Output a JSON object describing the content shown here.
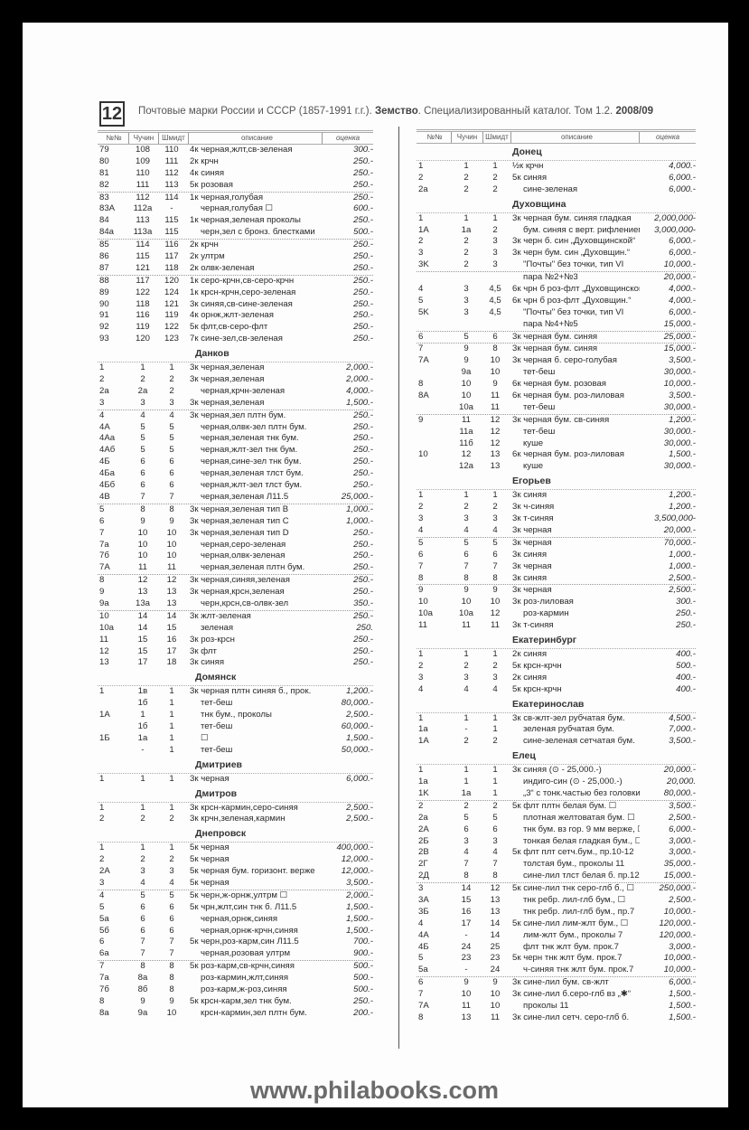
{
  "header": {
    "page_number": "12",
    "title_parts": [
      "Почтовые марки России и СССР (1857-1991 г.г.). ",
      "Земство",
      ". Специализированный каталог. Том 1.2. ",
      "2008/09"
    ]
  },
  "columns": [
    "№№",
    "Чучин",
    "Шмидт",
    "описание",
    "оценка"
  ],
  "left": [
    {
      "title": "",
      "groups": [
        [
          [
            "79",
            "108",
            "110",
            "4к черная,жлт,св-зеленая",
            "300.-"
          ],
          [
            "80",
            "109",
            "111",
            "2к крчн",
            "250.-"
          ],
          [
            "81",
            "110",
            "112",
            "4к синяя",
            "250.-"
          ],
          [
            "82",
            "111",
            "113",
            "5к розовая",
            "250.-"
          ]
        ],
        [
          [
            "83",
            "112",
            "114",
            "1к черная,голубая",
            "250.-"
          ],
          [
            "83A",
            "112a",
            "-",
            "черная,голубая ☐",
            "600.-"
          ],
          [
            "84",
            "113",
            "115",
            "1к черная,зеленая проколы",
            "250.-"
          ],
          [
            "84a",
            "113a",
            "115",
            "черн,зел с бронз. блестками",
            "500.-"
          ]
        ],
        [
          [
            "85",
            "114",
            "116",
            "2к крчн",
            "250.-"
          ],
          [
            "86",
            "115",
            "117",
            "2к ултрм",
            "250.-"
          ],
          [
            "87",
            "121",
            "118",
            "2к олвк-зеленая",
            "250.-"
          ]
        ],
        [
          [
            "88",
            "117",
            "120",
            "1к серо-крчн,св-серо-крчн",
            "250.-"
          ],
          [
            "89",
            "122",
            "124",
            "1к крсн-крчн,серо-зеленая",
            "250.-"
          ],
          [
            "90",
            "118",
            "121",
            "3к синяя,св-сине-зеленая",
            "250.-"
          ],
          [
            "91",
            "116",
            "119",
            "4к орнж,жлт-зеленая",
            "250.-"
          ],
          [
            "92",
            "119",
            "122",
            "5к флт,св-серо-флт",
            "250.-"
          ],
          [
            "93",
            "120",
            "123",
            "7к сине-зел,св-зеленая",
            "250.-"
          ]
        ]
      ]
    },
    {
      "title": "Данков",
      "groups": [
        [
          [
            "1",
            "1",
            "1",
            "3к черная,зеленая",
            "2,000.-"
          ],
          [
            "2",
            "2",
            "2",
            "3к черная,зеленая",
            "2,000.-"
          ],
          [
            "2a",
            "2a",
            "2",
            "черная,крчн-зеленая",
            "4,000.-"
          ],
          [
            "3",
            "3",
            "3",
            "3к черная,зеленая",
            "1,500.-"
          ]
        ],
        [
          [
            "4",
            "4",
            "4",
            "3к черная,зел плтн бум.",
            "250.-"
          ],
          [
            "4A",
            "5",
            "5",
            "черная,олвк-зел плтн бум.",
            "250.-"
          ],
          [
            "4Aa",
            "5",
            "5",
            "черная,зеленая тнк бум.",
            "250.-"
          ],
          [
            "4Aб",
            "5",
            "5",
            "черная,жлт-зел тнк бум.",
            "250.-"
          ],
          [
            "4Б",
            "6",
            "6",
            "черная,сине-зел тнк бум.",
            "250.-"
          ],
          [
            "4Бa",
            "6",
            "6",
            "черная,зеленая тлст бум.",
            "250.-"
          ],
          [
            "4Бб",
            "6",
            "6",
            "черная,жлт-зел тлст бум.",
            "250.-"
          ],
          [
            "4В",
            "7",
            "7",
            "черная,зеленая Л11.5",
            "25,000.-"
          ]
        ],
        [
          [
            "5",
            "8",
            "8",
            "3к черная,зеленая тип B",
            "1,000.-"
          ],
          [
            "6",
            "9",
            "9",
            "3к черная,зеленая тип C",
            "1,000.-"
          ],
          [
            "7",
            "10",
            "10",
            "3к черная,зеленая тип D",
            "250.-"
          ],
          [
            "7a",
            "10",
            "10",
            "черная,серо-зеленая",
            "250.-"
          ],
          [
            "7б",
            "10",
            "10",
            "черная,олвк-зеленая",
            "250.-"
          ],
          [
            "7A",
            "11",
            "11",
            "черная,зеленая плтн бум.",
            "250.-"
          ]
        ],
        [
          [
            "8",
            "12",
            "12",
            "3к черная,синяя,зеленая",
            "250.-"
          ],
          [
            "9",
            "13",
            "13",
            "3к черная,крсн,зеленая",
            "250.-"
          ],
          [
            "9a",
            "13a",
            "13",
            "черн,крсн,св-олвк-зел",
            "350.-"
          ]
        ],
        [
          [
            "10",
            "14",
            "14",
            "3к жлт-зеленая",
            "250.-"
          ],
          [
            "10a",
            "14",
            "15",
            "зеленая",
            "250."
          ],
          [
            "11",
            "15",
            "16",
            "3к роз-крсн",
            "250.-"
          ],
          [
            "12",
            "15",
            "17",
            "3к флт",
            "250.-"
          ],
          [
            "13",
            "17",
            "18",
            "3к синяя",
            "250.-"
          ]
        ]
      ]
    },
    {
      "title": "Домянск",
      "groups": [
        [
          [
            "1",
            "1в",
            "1",
            "3к черная плтн синяя б., прок.",
            "1,200.-"
          ],
          [
            "",
            "1б",
            "1",
            "тет-беш",
            "80,000.-"
          ],
          [
            "1A",
            "1",
            "1",
            "тнк бум., проколы",
            "2,500.-"
          ],
          [
            "",
            "1б",
            "1",
            "тет-беш",
            "60,000.-"
          ],
          [
            "1Б",
            "1a",
            "1",
            "☐",
            "1,500.-"
          ],
          [
            "",
            "-",
            "1",
            "тет-беш",
            "50,000.-"
          ]
        ]
      ]
    },
    {
      "title": "Дмитриев",
      "groups": [
        [
          [
            "1",
            "1",
            "1",
            "3к черная",
            "6,000.-"
          ]
        ]
      ]
    },
    {
      "title": "Дмитров",
      "groups": [
        [
          [
            "1",
            "1",
            "1",
            "3к крсн-кармин,серо-синяя",
            "2,500.-"
          ],
          [
            "2",
            "2",
            "2",
            "3к крчн,зеленая,кармин",
            "2,500.-"
          ]
        ]
      ]
    },
    {
      "title": "Днепровск",
      "groups": [
        [
          [
            "1",
            "1",
            "1",
            "5к черная",
            "400,000.-"
          ],
          [
            "2",
            "2",
            "2",
            "5к черная",
            "12,000.-"
          ],
          [
            "2A",
            "3",
            "3",
            "5к черная бум. горизонт. верже",
            "12,000.-"
          ],
          [
            "3",
            "4",
            "4",
            "5к черная",
            "3,500.-"
          ]
        ],
        [
          [
            "4",
            "5",
            "5",
            "5к черн,ж-орнж,ултрм ☐",
            "2,000.-"
          ],
          [
            "5",
            "6",
            "6",
            "5к чрн,жлт,син тнк б. Л11.5",
            "1,500.-"
          ],
          [
            "5a",
            "6",
            "6",
            "черная,орнж,синяя",
            "1,500.-"
          ],
          [
            "5б",
            "6",
            "6",
            "черная,орнж-крчн,синяя",
            "1,500.-"
          ],
          [
            "6",
            "7",
            "7",
            "5к черн,роз-карм,син Л11.5",
            "700.-"
          ],
          [
            "6a",
            "7",
            "7",
            "черная,розовая ултрм",
            "900.-"
          ]
        ],
        [
          [
            "7",
            "8",
            "8",
            "5к роз-карм,св-крчн,синяя",
            "500.-"
          ],
          [
            "7a",
            "8a",
            "8",
            "роз-кармин,жлт,синяя",
            "500.-"
          ],
          [
            "7б",
            "8б",
            "8",
            "роз-карм,ж-роз,синяя",
            "500.-"
          ],
          [
            "8",
            "9",
            "9",
            "5к крсн-карм,зел тнк бум.",
            "250.-"
          ],
          [
            "8a",
            "9a",
            "10",
            "крсн-кармин,зел плтн бум.",
            "200.-"
          ]
        ]
      ]
    }
  ],
  "right": [
    {
      "title": "Донец",
      "groups": [
        [
          [
            "1",
            "1",
            "1",
            "½к крчн",
            "4,000.-"
          ],
          [
            "2",
            "2",
            "2",
            "5к синяя",
            "6,000.-"
          ],
          [
            "2a",
            "2",
            "2",
            "сине-зеленая",
            "6,000.-"
          ]
        ]
      ]
    },
    {
      "title": "Духовщина",
      "groups": [
        [
          [
            "1",
            "1",
            "1",
            "3к черная бум. синяя гладкая",
            "2,000,000-"
          ],
          [
            "1A",
            "1a",
            "2",
            "бум. синяя с верт. рифлением",
            "3,000,000-"
          ],
          [
            "2",
            "2",
            "3",
            "3к черн б. син „Духовщинской“",
            "6,000.-"
          ],
          [
            "3",
            "2",
            "3",
            "3к черн бум. син „Духовщин.“",
            "6,000.-"
          ],
          [
            "3K",
            "2",
            "3",
            "\"Почты\" без точки, тип VI",
            "10,000.-"
          ]
        ],
        [
          [
            "",
            "",
            "",
            "пара №2+№3",
            "20,000.-"
          ],
          [
            "4",
            "3",
            "4,5",
            "6к чрн б роз-флт „Духовщинской“",
            "4,000.-"
          ],
          [
            "5",
            "3",
            "4,5",
            "6к чрн б роз-флт „Духовщин.“",
            "4,000.-"
          ],
          [
            "5K",
            "3",
            "4,5",
            "\"Почты\" без точки, тип VI",
            "6,000.-"
          ],
          [
            "",
            "",
            "",
            "пара №4+№5",
            "15,000.-"
          ]
        ],
        [
          [
            "6",
            "5",
            "6",
            "3к черная бум. синяя",
            "25,000.-"
          ]
        ],
        [
          [
            "7",
            "9",
            "8",
            "3к черная бум. синяя",
            "15,000.-"
          ],
          [
            "7A",
            "9",
            "10",
            "3к черная б. серо-голубая",
            "3,500.-"
          ],
          [
            "",
            "9a",
            "10",
            "тет-беш",
            "30,000.-"
          ],
          [
            "8",
            "10",
            "9",
            "6к черная бум. розовая",
            "10,000.-"
          ],
          [
            "8A",
            "10",
            "11",
            "6к черная бум. роз-лиловая",
            "3,500.-"
          ],
          [
            "",
            "10a",
            "11",
            "тет-беш",
            "30,000.-"
          ]
        ],
        [
          [
            "9",
            "11",
            "12",
            "3к черная бум. св-синяя",
            "1,200.-"
          ],
          [
            "",
            "11a",
            "12",
            "тет-беш",
            "30,000.-"
          ],
          [
            "",
            "11б",
            "12",
            "куше",
            "30,000.-"
          ],
          [
            "10",
            "12",
            "13",
            "6к черная бум. роз-лиловая",
            "1,500.-"
          ],
          [
            "",
            "12a",
            "13",
            "куше",
            "30,000.-"
          ]
        ]
      ]
    },
    {
      "title": "Егорьев",
      "groups": [
        [
          [
            "1",
            "1",
            "1",
            "3к синяя",
            "1,200.-"
          ],
          [
            "2",
            "2",
            "2",
            "3к ч-синяя",
            "1,200.-"
          ],
          [
            "3",
            "3",
            "3",
            "3к т-синяя",
            "3,500,000-"
          ],
          [
            "4",
            "4",
            "4",
            "3к черная",
            "20,000.-"
          ]
        ],
        [
          [
            "5",
            "5",
            "5",
            "3к черная",
            "70,000.-"
          ],
          [
            "6",
            "6",
            "6",
            "3к синяя",
            "1,000.-"
          ],
          [
            "7",
            "7",
            "7",
            "3к черная",
            "1,000.-"
          ],
          [
            "8",
            "8",
            "8",
            "3к синяя",
            "2,500.-"
          ]
        ],
        [
          [
            "9",
            "9",
            "9",
            "3к черная",
            "2,500.-"
          ],
          [
            "10",
            "10",
            "10",
            "3к роз-лиловая",
            "300.-"
          ],
          [
            "10a",
            "10a",
            "12",
            "роз-кармин",
            "250.-"
          ],
          [
            "11",
            "11",
            "11",
            "3к т-синяя",
            "250.-"
          ]
        ]
      ]
    },
    {
      "title": "Екатеринбург",
      "groups": [
        [
          [
            "1",
            "1",
            "1",
            "2к синяя",
            "400.-"
          ],
          [
            "2",
            "2",
            "2",
            "5к крсн-крчн",
            "500.-"
          ],
          [
            "3",
            "3",
            "3",
            "2к синяя",
            "400.-"
          ],
          [
            "4",
            "4",
            "4",
            "5к крсн-крчн",
            "400.-"
          ]
        ]
      ]
    },
    {
      "title": "Екатеринослав",
      "groups": [
        [
          [
            "1",
            "1",
            "1",
            "3к св-жлт-зел рубчатая бум.",
            "4,500.-"
          ],
          [
            "1a",
            "-",
            "1",
            "зеленая рубчатая бум.",
            "7,000.-"
          ],
          [
            "1A",
            "2",
            "2",
            "сине-зеленая сетчатая бум.",
            "3,500.-"
          ]
        ]
      ]
    },
    {
      "title": "Елец",
      "groups": [
        [
          [
            "1",
            "1",
            "1",
            "3к синяя (⊙ - 25,000.-)",
            "20,000.-"
          ],
          [
            "1a",
            "1",
            "1",
            "индиго-син (⊙ - 25,000.-)",
            "20,000."
          ],
          [
            "1K",
            "1a",
            "1",
            "„3“ с тонк.частью без головки",
            "80,000.-"
          ]
        ],
        [
          [
            "2",
            "2",
            "2",
            "5к флт плтн белая бум. ☐",
            "3,500.-"
          ],
          [
            "2a",
            "5",
            "5",
            "плотная желтоватая бум. ☐",
            "2,500.-"
          ],
          [
            "2A",
            "6",
            "6",
            "тнк бум. вз гор. 9 мм верже, ☐",
            "6,000.-"
          ],
          [
            "2Б",
            "3",
            "3",
            "тонкая белая гладкая бум., ☐",
            "3,000.-"
          ],
          [
            "2В",
            "4",
            "4",
            "5к флт плт сетч.бум., пр.10-12",
            "3,000.-"
          ],
          [
            "2Г",
            "7",
            "7",
            "толстая бум., проколы 11",
            "35,000.-"
          ],
          [
            "2Д",
            "8",
            "8",
            "сине-лил тлст белая б. пр.12",
            "15,000.-"
          ]
        ],
        [
          [
            "3",
            "14",
            "12",
            "5к сине-лил тнк серо-глб б., ☐",
            "250,000.-"
          ],
          [
            "3A",
            "15",
            "13",
            "тнк ребр. лил-глб бум., ☐",
            "2,500.-"
          ],
          [
            "3Б",
            "16",
            "13",
            "тнк ребр. лил-глб бум., пр.7",
            "10,000.-"
          ],
          [
            "4",
            "17",
            "14",
            "5к сине-лил лим-жлт бум., ☐",
            "120,000.-"
          ],
          [
            "4A",
            "-",
            "14",
            "лим-жлт бум., проколы 7",
            "120,000.-"
          ],
          [
            "4Б",
            "24",
            "25",
            "флт тнк жлт бум. прок.7",
            "3,000.-"
          ],
          [
            "5",
            "23",
            "23",
            "5к черн тнк жлт бум. прок.7",
            "10,000.-"
          ],
          [
            "5a",
            "-",
            "24",
            "ч-синяя тнк жлт бум. прок.7",
            "10,000.-"
          ]
        ],
        [
          [
            "6",
            "9",
            "9",
            "3к сине-лил бум. св-жлт",
            "6,000.-"
          ],
          [
            "7",
            "10",
            "10",
            "3к сине-лил б.серо-глб вз „✱“",
            "1,500.-"
          ],
          [
            "7A",
            "11",
            "10",
            "проколы 11",
            "1,500.-"
          ],
          [
            "8",
            "13",
            "11",
            "3к сине-лил сетч. серо-глб б.",
            "1,500.-"
          ]
        ]
      ]
    }
  ],
  "footer": {
    "url": "www.philabooks.com"
  }
}
